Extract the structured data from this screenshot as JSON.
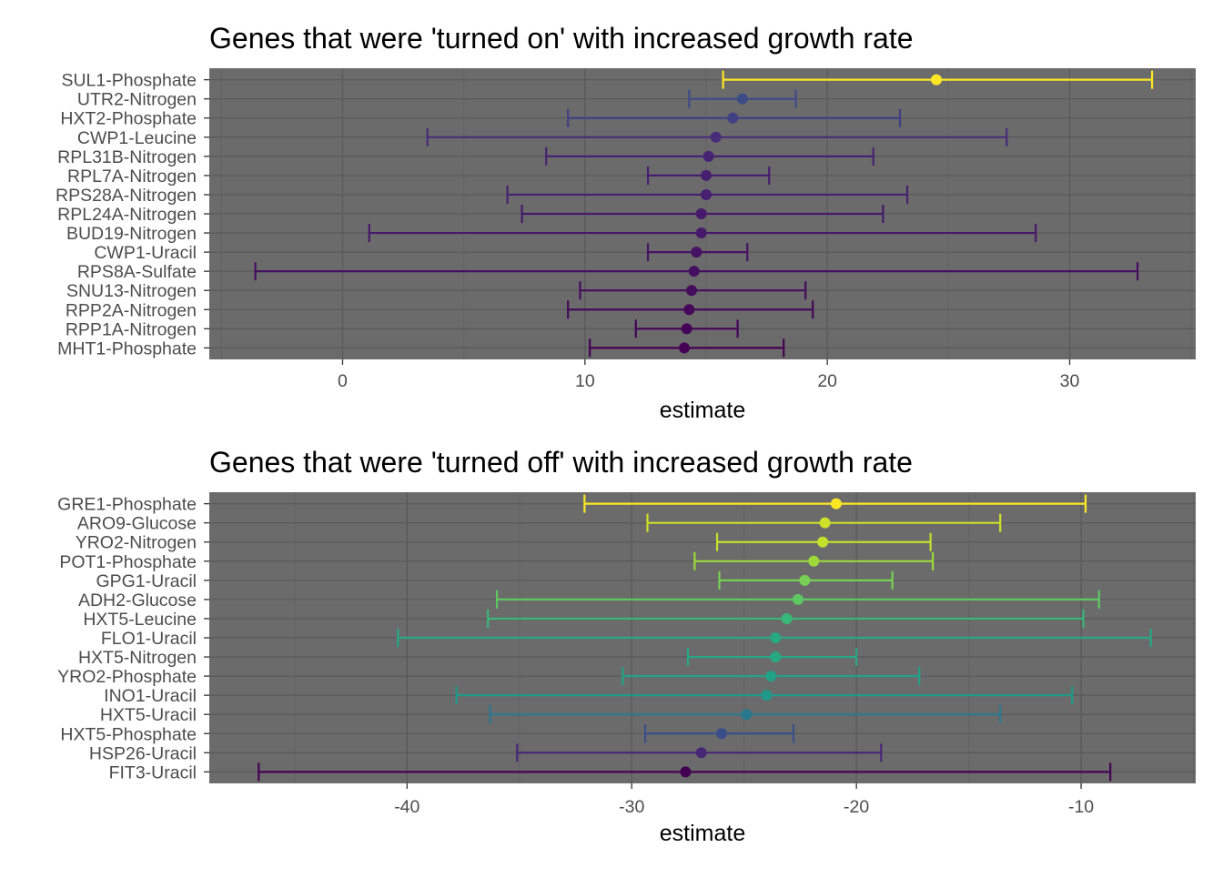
{
  "chart_data": [
    {
      "type": "errorbar",
      "title": "Genes that were 'turned on' with increased growth rate",
      "xlabel": "estimate",
      "ylabel": "",
      "xlim": [
        -5.5,
        35.2
      ],
      "xticks": [
        0,
        10,
        20,
        30
      ],
      "xtick_labels": [
        "0",
        "10",
        "20",
        "30"
      ],
      "grid": true,
      "legend": "none",
      "color_scale": "viridis",
      "color_range": [
        14.1,
        24.5
      ],
      "points": [
        {
          "label": "SUL1-Phosphate",
          "estimate": 24.5,
          "low": 15.7,
          "high": 33.4
        },
        {
          "label": "UTR2-Nitrogen",
          "estimate": 16.5,
          "low": 14.3,
          "high": 18.7
        },
        {
          "label": "HXT2-Phosphate",
          "estimate": 16.1,
          "low": 9.3,
          "high": 23.0
        },
        {
          "label": "CWP1-Leucine",
          "estimate": 15.4,
          "low": 3.5,
          "high": 27.4
        },
        {
          "label": "RPL31B-Nitrogen",
          "estimate": 15.1,
          "low": 8.4,
          "high": 21.9
        },
        {
          "label": "RPL7A-Nitrogen",
          "estimate": 15.0,
          "low": 12.6,
          "high": 17.6
        },
        {
          "label": "RPS28A-Nitrogen",
          "estimate": 15.0,
          "low": 6.8,
          "high": 23.3
        },
        {
          "label": "RPL24A-Nitrogen",
          "estimate": 14.8,
          "low": 7.4,
          "high": 22.3
        },
        {
          "label": "BUD19-Nitrogen",
          "estimate": 14.8,
          "low": 1.1,
          "high": 28.6
        },
        {
          "label": "CWP1-Uracil",
          "estimate": 14.6,
          "low": 12.6,
          "high": 16.7
        },
        {
          "label": "RPS8A-Sulfate",
          "estimate": 14.5,
          "low": -3.6,
          "high": 32.8
        },
        {
          "label": "SNU13-Nitrogen",
          "estimate": 14.4,
          "low": 9.8,
          "high": 19.1
        },
        {
          "label": "RPP2A-Nitrogen",
          "estimate": 14.3,
          "low": 9.3,
          "high": 19.4
        },
        {
          "label": "RPP1A-Nitrogen",
          "estimate": 14.2,
          "low": 12.1,
          "high": 16.3
        },
        {
          "label": "MHT1-Phosphate",
          "estimate": 14.1,
          "low": 10.2,
          "high": 18.2
        }
      ]
    },
    {
      "type": "errorbar",
      "title": "Genes that were 'turned off' with increased growth rate",
      "xlabel": "estimate",
      "ylabel": "",
      "xlim": [
        -48.8,
        -4.9
      ],
      "xticks": [
        -40,
        -30,
        -20,
        -10
      ],
      "xtick_labels": [
        "-40",
        "-30",
        "-20",
        "-10"
      ],
      "grid": true,
      "legend": "none",
      "color_scale": "viridis",
      "color_range": [
        -27.6,
        -20.9
      ],
      "points": [
        {
          "label": "GRE1-Phosphate",
          "estimate": -20.9,
          "low": -32.1,
          "high": -9.8
        },
        {
          "label": "ARO9-Glucose",
          "estimate": -21.4,
          "low": -29.3,
          "high": -13.6
        },
        {
          "label": "YRO2-Nitrogen",
          "estimate": -21.5,
          "low": -26.2,
          "high": -16.7
        },
        {
          "label": "POT1-Phosphate",
          "estimate": -21.9,
          "low": -27.2,
          "high": -16.6
        },
        {
          "label": "GPG1-Uracil",
          "estimate": -22.3,
          "low": -26.1,
          "high": -18.4
        },
        {
          "label": "ADH2-Glucose",
          "estimate": -22.6,
          "low": -36.0,
          "high": -9.2
        },
        {
          "label": "HXT5-Leucine",
          "estimate": -23.1,
          "low": -36.4,
          "high": -9.9
        },
        {
          "label": "FLO1-Uracil",
          "estimate": -23.6,
          "low": -40.4,
          "high": -6.9
        },
        {
          "label": "HXT5-Nitrogen",
          "estimate": -23.6,
          "low": -27.5,
          "high": -20.0
        },
        {
          "label": "YRO2-Phosphate",
          "estimate": -23.8,
          "low": -30.4,
          "high": -17.2
        },
        {
          "label": "INO1-Uracil",
          "estimate": -24.0,
          "low": -37.8,
          "high": -10.4
        },
        {
          "label": "HXT5-Uracil",
          "estimate": -24.9,
          "low": -36.3,
          "high": -13.6
        },
        {
          "label": "HXT5-Phosphate",
          "estimate": -26.0,
          "low": -29.4,
          "high": -22.8
        },
        {
          "label": "HSP26-Uracil",
          "estimate": -26.9,
          "low": -35.1,
          "high": -18.9
        },
        {
          "label": "FIT3-Uracil",
          "estimate": -27.6,
          "low": -46.6,
          "high": -8.7
        }
      ]
    }
  ]
}
